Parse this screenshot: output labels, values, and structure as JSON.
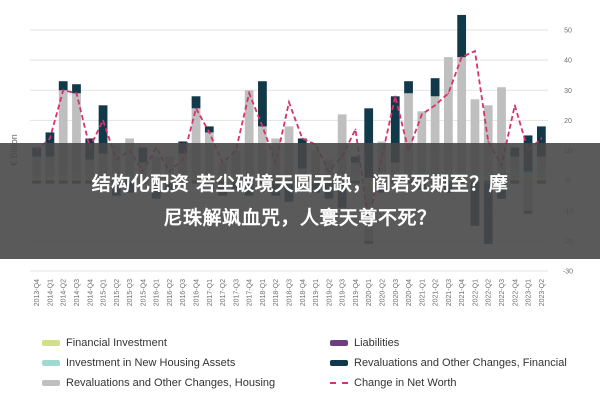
{
  "banner": {
    "line1": "结构化配资 若尘破境天圆无缺，阎君死期至？摩",
    "line2": "尼珠解飒血咒，人寰天尊不死？"
  },
  "colors": {
    "financial_investment": "#d2e08a",
    "investment_new_housing": "#9fd9d0",
    "revaluations_housing": "#bfbfbf",
    "liabilities": "#6b3f7f",
    "revaluations_financial": "#12394a",
    "change_net_worth": "#d6336c",
    "banner_bg": "#484848"
  },
  "chart_data": {
    "type": "bar",
    "stacked": true,
    "ylabel": "€ Billion",
    "ylim": [
      -30,
      50
    ],
    "yticks": [
      50,
      40,
      30,
      20,
      10,
      0,
      -10,
      -20,
      -30
    ],
    "y_axis_position": "right",
    "legend_position": "bottom",
    "categories": [
      "2013-Q4",
      "2014-Q1",
      "2014-Q2",
      "2014-Q3",
      "2014-Q4",
      "2015-Q1",
      "2015-Q2",
      "2015-Q3",
      "2015-Q4",
      "2016-Q1",
      "2016-Q2",
      "2016-Q3",
      "2016-Q4",
      "2017-Q1",
      "2017-Q2",
      "2017-Q3",
      "2017-Q4",
      "2018-Q1",
      "2018-Q2",
      "2018-Q3",
      "2018-Q4",
      "2019-Q1",
      "2019-Q2",
      "2019-Q3",
      "2019-Q4",
      "2020-Q1",
      "2020-Q2",
      "2020-Q3",
      "2020-Q4",
      "2021-Q1",
      "2021-Q2",
      "2021-Q3",
      "2021-Q4",
      "2022-Q1",
      "2022-Q2",
      "2022-Q3",
      "2022-Q4",
      "2023-Q1",
      "2023-Q2"
    ],
    "series": [
      {
        "name": "Financial Investment",
        "kind": "bar",
        "color_key": "financial_investment",
        "values": [
          1,
          1,
          1,
          1,
          1,
          1,
          1,
          1,
          1,
          1,
          1,
          1,
          1,
          1,
          1,
          1,
          1,
          1,
          1,
          1,
          1,
          1,
          1,
          1,
          1,
          -2,
          2,
          1,
          1,
          1,
          1,
          1,
          1,
          1,
          1,
          1,
          1,
          1,
          1
        ]
      },
      {
        "name": "Investment in New Housing Assets",
        "kind": "bar",
        "color_key": "investment_new_housing",
        "values": [
          1,
          1,
          1,
          1,
          1,
          1,
          1,
          1,
          1,
          1,
          1,
          1,
          1,
          1,
          1,
          1,
          1,
          1,
          1,
          1,
          1,
          1,
          1,
          1,
          1,
          1,
          1,
          1,
          2,
          2,
          2,
          2,
          2,
          2,
          2,
          2,
          2,
          2,
          2
        ]
      },
      {
        "name": "Revaluations and Other Changes, Housing",
        "kind": "bar",
        "color_key": "revaluations_housing",
        "values": [
          6,
          6,
          28,
          27,
          5,
          7,
          10,
          12,
          4,
          6,
          6,
          7,
          22,
          14,
          4,
          8,
          28,
          16,
          12,
          16,
          2,
          8,
          5,
          20,
          4,
          -18,
          10,
          4,
          26,
          20,
          25,
          38,
          38,
          24,
          22,
          28,
          5,
          -10,
          5
        ]
      },
      {
        "name": "Liabilities",
        "kind": "bar",
        "color_key": "liabilities",
        "values": [
          -1,
          -1,
          -1,
          -1,
          -1,
          -1,
          -1,
          -1,
          -1,
          -1,
          -1,
          -1,
          -1,
          -1,
          -1,
          -1,
          -1,
          -1,
          -1,
          -1,
          -1,
          -1,
          -1,
          -1,
          -1,
          -1,
          -1,
          -1,
          -1,
          -1,
          -1,
          -1,
          -1,
          -1,
          -1,
          -1,
          -1,
          -1,
          -1
        ]
      },
      {
        "name": "Revaluations and Other Changes, Financial",
        "kind": "bar",
        "color_key": "revaluations_financial",
        "values": [
          3,
          8,
          3,
          3,
          7,
          16,
          -4,
          -3,
          5,
          -5,
          -2,
          4,
          4,
          2,
          -4,
          -2,
          -4,
          15,
          -4,
          -6,
          10,
          -3,
          -5,
          -8,
          2,
          23,
          -3,
          22,
          4,
          -2,
          6,
          -3,
          14,
          -14,
          -20,
          -5,
          3,
          12,
          10
        ]
      },
      {
        "name": "Change in Net Worth",
        "kind": "line",
        "color_key": "change_net_worth",
        "values": [
          10,
          14,
          30,
          29,
          11,
          20,
          7,
          10,
          3,
          11,
          3,
          7,
          24,
          16,
          6,
          10,
          29,
          18,
          6,
          26,
          14,
          12,
          3,
          8,
          17,
          -14,
          8,
          28,
          10,
          22,
          25,
          29,
          41,
          43,
          13,
          5,
          25,
          10,
          14
        ]
      }
    ]
  },
  "legend": [
    {
      "label": "Financial Investment",
      "color_key": "financial_investment",
      "style": "swatch"
    },
    {
      "label": "Liabilities",
      "color_key": "liabilities",
      "style": "swatch"
    },
    {
      "label": "Investment in New Housing Assets",
      "color_key": "investment_new_housing",
      "style": "swatch"
    },
    {
      "label": "Revaluations and Other Changes, Financial",
      "color_key": "revaluations_financial",
      "style": "swatch"
    },
    {
      "label": "Revaluations and Other Changes, Housing",
      "color_key": "revaluations_housing",
      "style": "swatch"
    },
    {
      "label": "Change in Net Worth",
      "color_key": "change_net_worth",
      "style": "dash"
    }
  ]
}
